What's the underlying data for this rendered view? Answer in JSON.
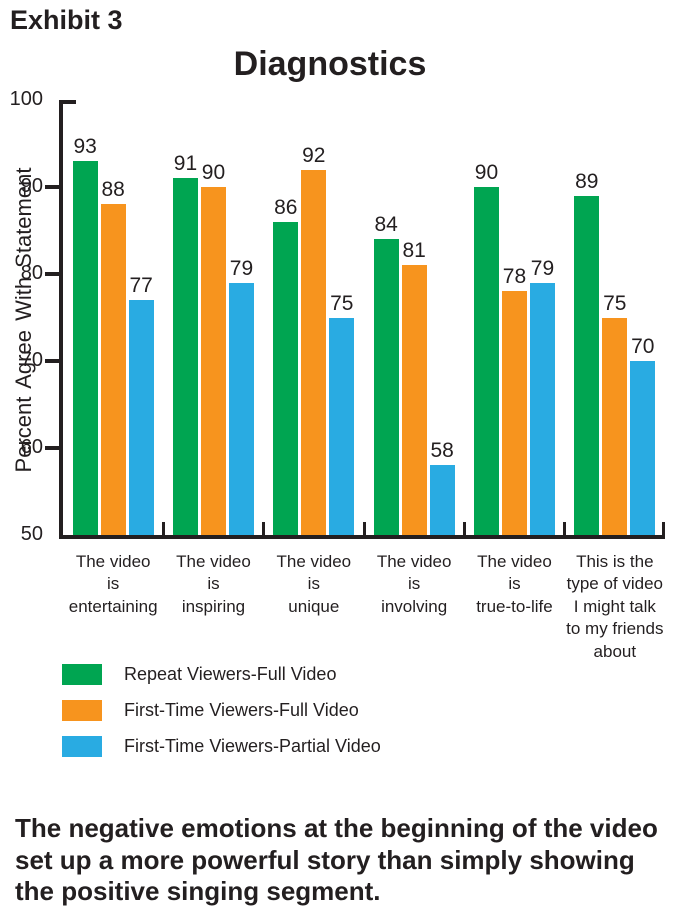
{
  "exhibit_label": "Exhibit 3",
  "chart_data": {
    "type": "bar",
    "title": "Diagnostics",
    "xlabel": "",
    "ylabel": "Percent Agree With Statement",
    "ylim": [
      50,
      100
    ],
    "yticks": [
      100,
      90,
      80,
      70,
      60,
      50
    ],
    "grid": false,
    "legend_position": "bottom-left",
    "categories": [
      [
        "The video",
        "is",
        "entertaining"
      ],
      [
        "The video",
        "is",
        "inspiring"
      ],
      [
        "The video",
        "is",
        "unique"
      ],
      [
        "The video",
        "is",
        "involving"
      ],
      [
        "The video",
        "is",
        "true-to-life"
      ],
      [
        "This is the",
        "type of video",
        "I might talk",
        "to my friends",
        "about"
      ]
    ],
    "series": [
      {
        "name": "Repeat Viewers-Full Video",
        "color": "#00a551",
        "values": [
          93,
          91,
          86,
          84,
          90,
          89
        ]
      },
      {
        "name": "First-Time Viewers-Full Video",
        "color": "#f7941e",
        "values": [
          88,
          90,
          92,
          81,
          78,
          75
        ]
      },
      {
        "name": "First-Time Viewers-Partial Video",
        "color": "#29abe2",
        "values": [
          77,
          79,
          75,
          58,
          79,
          70
        ]
      }
    ]
  },
  "caption_lines": [
    "The negative emotions at the beginning of the video",
    "set up a more powerful story than simply showing",
    "the positive singing segment."
  ],
  "colors": {
    "text": "#231f20",
    "axis": "#231f20",
    "green": "#00a551",
    "orange": "#f7941e",
    "blue": "#29abe2"
  }
}
